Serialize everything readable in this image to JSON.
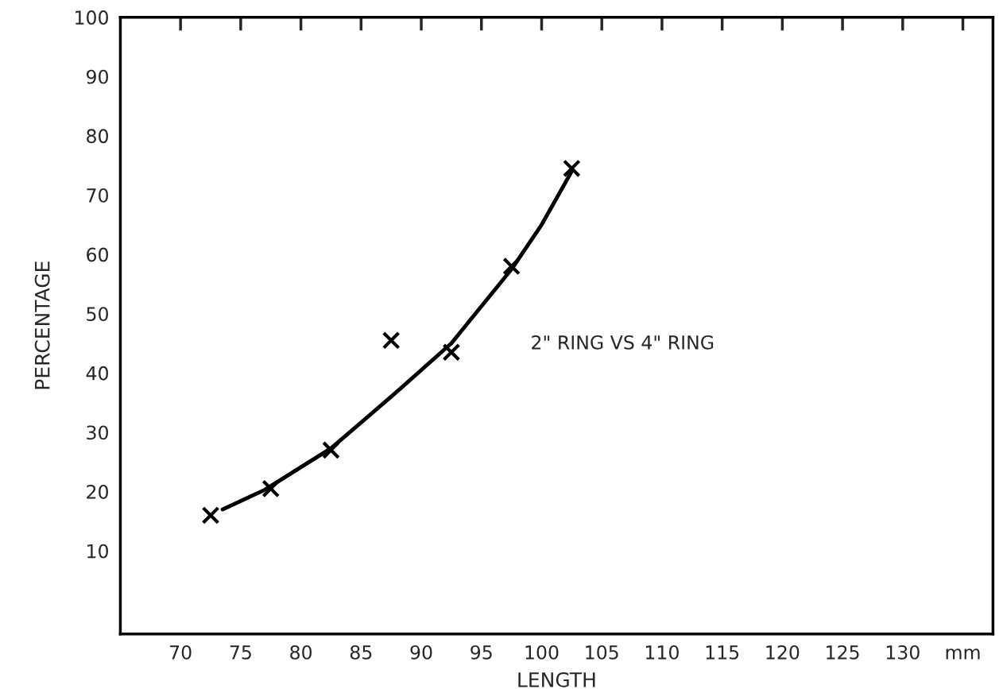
{
  "chart_data": {
    "type": "scatter",
    "xlabel": "LENGTH",
    "ylabel": "PERCENTAGE",
    "x": [
      72.5,
      77.5,
      82.5,
      87.5,
      92.5,
      97.5,
      102.5
    ],
    "series": [
      {
        "color": "#000000",
        "marker": "cross",
        "values": [
          16,
          20.5,
          27,
          45.5,
          43.5,
          58,
          74.5
        ]
      },
      {
        "type": "line",
        "color": "#000000",
        "marker": "none",
        "line_style": "solid",
        "x": [
          73.5,
          77,
          82.5,
          87.5,
          92.5,
          97.5,
          100,
          102.5
        ],
        "values": [
          17,
          20.3,
          27.3,
          36,
          45,
          57.5,
          65,
          74
        ]
      }
    ],
    "xlim": [
      65,
      137.5
    ],
    "ylim": [
      -4,
      100
    ],
    "xticks": [
      70,
      75,
      80,
      85,
      90,
      95,
      100,
      105,
      110,
      115,
      120,
      125,
      130,
      {
        "value": 135,
        "label": "mm"
      }
    ],
    "yticks": [
      10,
      20,
      30,
      40,
      50,
      60,
      70,
      80,
      90,
      100
    ],
    "annotations": [
      "2\" RING VS 4\" RING"
    ],
    "grid": false,
    "legend": false
  }
}
